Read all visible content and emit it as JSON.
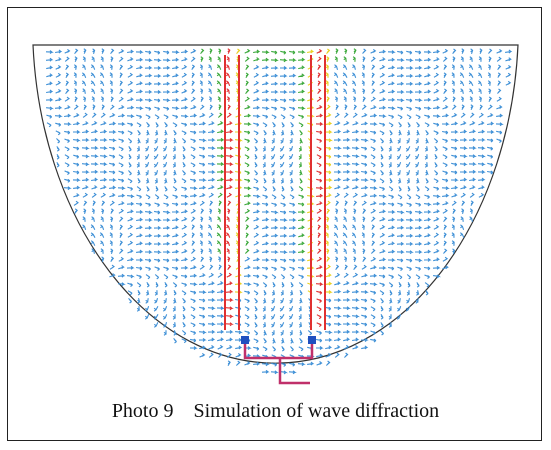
{
  "figure": {
    "caption": "Photo 9    Simulation of wave diffraction"
  }
}
